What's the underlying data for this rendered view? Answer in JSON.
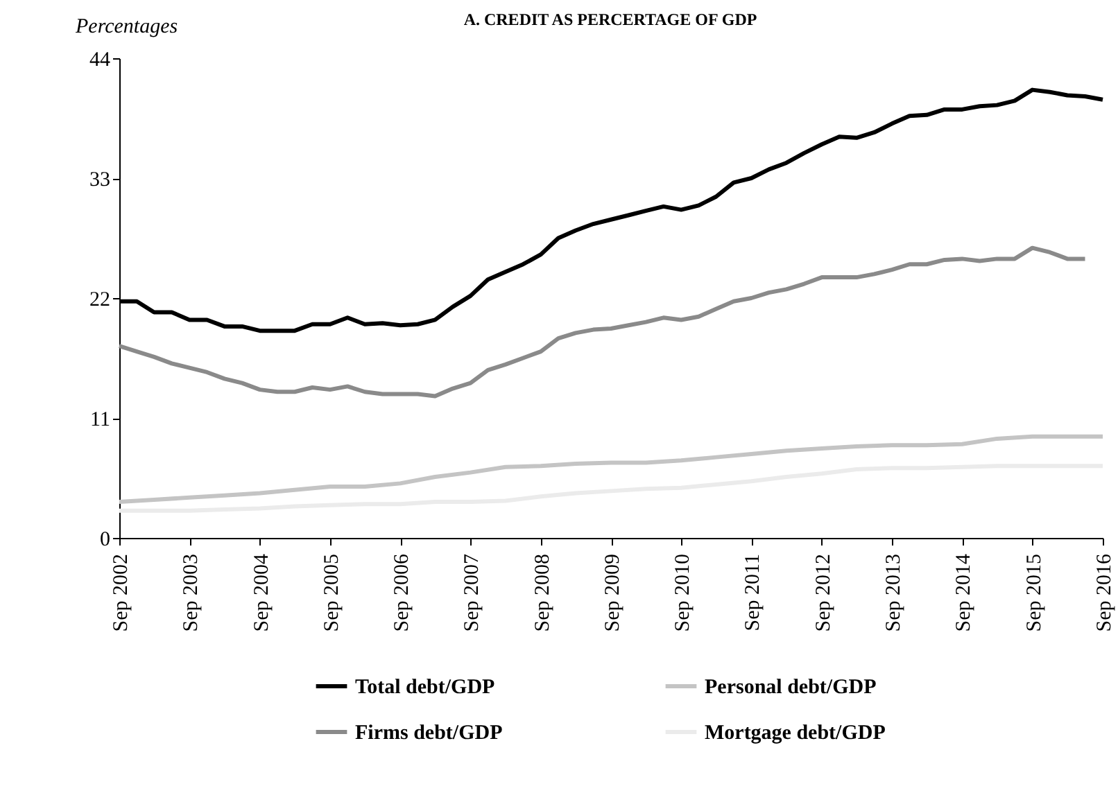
{
  "chart_data": {
    "type": "line",
    "title": "A. CREDIT AS PERCERTAGE OF GDP",
    "ylabel": "Percentages",
    "x": [
      "2002-09",
      "2002-12",
      "2003-03",
      "2003-06",
      "2003-09",
      "2003-12",
      "2004-03",
      "2004-06",
      "2004-09",
      "2004-12",
      "2005-03",
      "2005-06",
      "2005-09",
      "2005-12",
      "2006-03",
      "2006-06",
      "2006-09",
      "2006-12",
      "2007-03",
      "2007-06",
      "2007-09",
      "2007-12",
      "2008-03",
      "2008-06",
      "2008-09",
      "2008-12",
      "2009-03",
      "2009-06",
      "2009-09",
      "2009-12",
      "2010-03",
      "2010-06",
      "2010-09",
      "2010-12",
      "2011-03",
      "2011-06",
      "2011-09",
      "2011-12",
      "2012-03",
      "2012-06",
      "2012-09",
      "2012-12",
      "2013-03",
      "2013-06",
      "2013-09",
      "2013-12",
      "2014-03",
      "2014-06",
      "2014-09",
      "2014-12",
      "2015-03",
      "2015-06",
      "2015-09",
      "2015-12",
      "2016-03",
      "2016-06",
      "2016-09"
    ],
    "series": [
      {
        "name": "Total debt/GDP",
        "color": "#000000",
        "values": [
          21.7,
          21.7,
          20.7,
          20.7,
          20.0,
          20.0,
          19.4,
          19.4,
          19.0,
          19.0,
          19.0,
          19.6,
          19.6,
          20.2,
          19.6,
          19.7,
          19.5,
          19.6,
          20.0,
          21.2,
          22.2,
          23.7,
          24.4,
          25.1,
          26.0,
          27.5,
          28.2,
          28.8,
          29.2,
          29.6,
          30.0,
          30.4,
          30.1,
          30.5,
          31.3,
          32.6,
          33.0,
          33.8,
          34.4,
          35.3,
          36.1,
          36.8,
          36.7,
          37.2,
          38.0,
          38.7,
          38.8,
          39.3,
          39.3,
          39.6,
          39.7,
          40.1,
          41.1,
          40.9,
          40.6,
          40.5,
          40.2
        ]
      },
      {
        "name": "Firms debt/GDP",
        "color": "#8a8a8a",
        "x": [
          "2002-09",
          "2002-12",
          "2003-03",
          "2003-06",
          "2003-09",
          "2003-12",
          "2004-03",
          "2004-06",
          "2004-09",
          "2004-12",
          "2005-03",
          "2005-06",
          "2005-09",
          "2005-12",
          "2006-03",
          "2006-06",
          "2006-09",
          "2006-12",
          "2007-03",
          "2007-06",
          "2007-09",
          "2007-12",
          "2008-03",
          "2008-06",
          "2008-09",
          "2008-12",
          "2009-03",
          "2009-06",
          "2009-09",
          "2009-12",
          "2010-03",
          "2010-06",
          "2010-09",
          "2010-12",
          "2011-03",
          "2011-06",
          "2011-09",
          "2011-12",
          "2012-03",
          "2012-06",
          "2012-09",
          "2012-12",
          "2013-03",
          "2013-06",
          "2013-09",
          "2013-12",
          "2014-03",
          "2014-06",
          "2014-09",
          "2014-12",
          "2015-03",
          "2015-06",
          "2015-09",
          "2015-12",
          "2016-03",
          "2016-06"
        ],
        "values": [
          17.6,
          17.1,
          16.6,
          16.0,
          15.6,
          15.2,
          14.6,
          14.2,
          13.6,
          13.4,
          13.4,
          13.8,
          13.6,
          13.9,
          13.4,
          13.2,
          13.2,
          13.2,
          13.0,
          13.7,
          14.2,
          15.4,
          15.9,
          16.5,
          17.1,
          18.3,
          18.8,
          19.1,
          19.2,
          19.5,
          19.8,
          20.2,
          20.0,
          20.3,
          21.0,
          21.7,
          22.0,
          22.5,
          22.8,
          23.3,
          23.9,
          23.9,
          23.9,
          24.2,
          24.6,
          25.1,
          25.1,
          25.5,
          25.6,
          25.4,
          25.6,
          25.6,
          26.6,
          26.2,
          25.6,
          25.6
        ]
      },
      {
        "name": "Personal debt/GDP",
        "color": "#c4c4c4",
        "x": [
          "2002-09",
          "2003-03",
          "2003-09",
          "2004-03",
          "2004-09",
          "2005-03",
          "2005-09",
          "2006-03",
          "2006-09",
          "2007-03",
          "2007-09",
          "2008-03",
          "2008-09",
          "2009-03",
          "2009-09",
          "2010-03",
          "2010-09",
          "2011-03",
          "2011-09",
          "2012-03",
          "2012-09",
          "2013-03",
          "2013-09",
          "2014-03",
          "2014-09",
          "2015-03",
          "2015-09",
          "2016-03",
          "2016-09"
        ],
        "values": [
          3.3,
          3.5,
          3.7,
          3.9,
          4.1,
          4.4,
          4.7,
          4.7,
          5.0,
          5.6,
          6.0,
          6.5,
          6.6,
          6.8,
          6.9,
          6.9,
          7.1,
          7.4,
          7.7,
          8.0,
          8.2,
          8.4,
          8.5,
          8.5,
          8.6,
          9.1,
          9.3,
          9.3,
          9.3
        ]
      },
      {
        "name": "Mortgage debt/GDP",
        "color": "#ebebeb",
        "x": [
          "2002-09",
          "2003-03",
          "2003-09",
          "2004-03",
          "2004-09",
          "2005-03",
          "2005-09",
          "2006-03",
          "2006-09",
          "2007-03",
          "2007-09",
          "2008-03",
          "2008-09",
          "2009-03",
          "2009-09",
          "2010-03",
          "2010-09",
          "2011-03",
          "2011-09",
          "2012-03",
          "2012-09",
          "2013-03",
          "2013-09",
          "2014-03",
          "2014-09",
          "2015-03",
          "2015-09",
          "2016-03",
          "2016-09"
        ],
        "values": [
          2.5,
          2.5,
          2.5,
          2.6,
          2.7,
          2.9,
          3.0,
          3.1,
          3.1,
          3.3,
          3.3,
          3.4,
          3.8,
          4.1,
          4.3,
          4.5,
          4.6,
          4.9,
          5.2,
          5.6,
          5.9,
          6.3,
          6.4,
          6.4,
          6.5,
          6.6,
          6.6,
          6.6,
          6.6
        ]
      }
    ],
    "xlim": [
      "2002-09",
      "2016-09"
    ],
    "xticks": [
      {
        "value": "2002-09",
        "label": "Sep 2002"
      },
      {
        "value": "2003-09",
        "label": "Sep 2003"
      },
      {
        "value": "2004-09",
        "label": "Sep 2004"
      },
      {
        "value": "2005-09",
        "label": "Sep 2005"
      },
      {
        "value": "2006-09",
        "label": "Sep 2006"
      },
      {
        "value": "2007-09",
        "label": "Sep 2007"
      },
      {
        "value": "2008-09",
        "label": "Sep 2008"
      },
      {
        "value": "2009-09",
        "label": "Sep 2009"
      },
      {
        "value": "2010-09",
        "label": "Sep 2010"
      },
      {
        "value": "2011-09",
        "label": "Sep 2011"
      },
      {
        "value": "2012-09",
        "label": "Sep 2012"
      },
      {
        "value": "2013-09",
        "label": "Sep 2013"
      },
      {
        "value": "2014-09",
        "label": "Sep 2014"
      },
      {
        "value": "2015-09",
        "label": "Sep 2015"
      },
      {
        "value": "2016-09",
        "label": "Sep 2016"
      }
    ],
    "ylim": [
      0,
      44
    ],
    "yticks": [
      0,
      11,
      22,
      33,
      44
    ],
    "grid": false,
    "legend": "bottom",
    "line_style": "solid",
    "marker": "none"
  }
}
